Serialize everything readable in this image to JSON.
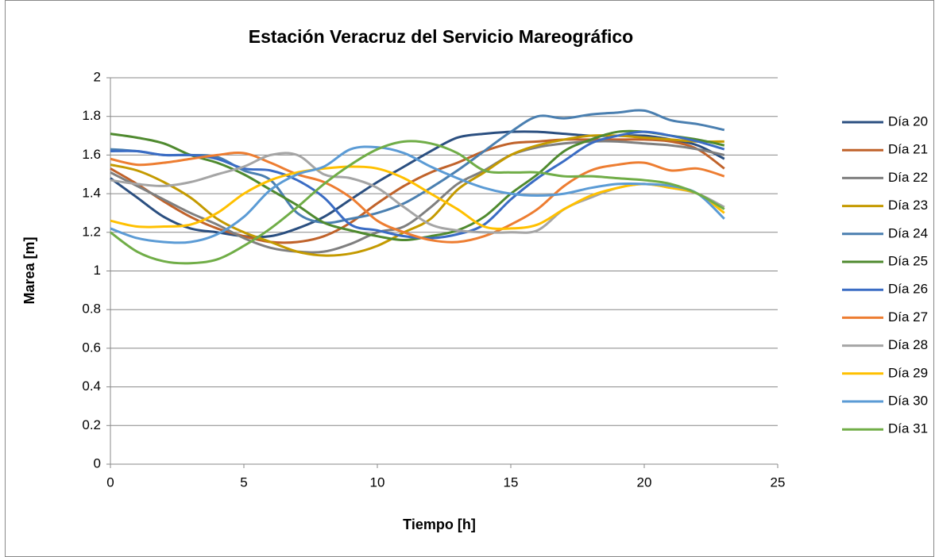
{
  "chart_data": {
    "type": "line",
    "title": "Estación Veracruz del Servicio Mareográfico",
    "xlabel": "Tiempo [h]",
    "ylabel": "Marea [m]",
    "x": [
      0,
      1,
      2,
      3,
      4,
      5,
      6,
      7,
      8,
      9,
      10,
      11,
      12,
      13,
      14,
      15,
      16,
      17,
      18,
      19,
      20,
      21,
      22,
      23
    ],
    "xlim": [
      0,
      25
    ],
    "xticks": [
      0,
      5,
      10,
      15,
      20,
      25
    ],
    "ylim": [
      0,
      2
    ],
    "yticks": [
      0,
      0.2,
      0.4,
      0.6,
      0.8,
      1,
      1.2,
      1.4,
      1.6,
      1.8,
      2
    ],
    "grid": true,
    "legend": "right",
    "smooth": true,
    "series": [
      {
        "name": "Día 20",
        "color": "#2b4f80",
        "values": [
          1.48,
          1.38,
          1.28,
          1.22,
          1.2,
          1.18,
          1.18,
          1.22,
          1.28,
          1.37,
          1.46,
          1.54,
          1.62,
          1.69,
          1.71,
          1.72,
          1.72,
          1.71,
          1.7,
          1.7,
          1.7,
          1.68,
          1.65,
          1.58
        ]
      },
      {
        "name": "Día 21",
        "color": "#c0622a",
        "values": [
          1.53,
          1.45,
          1.36,
          1.28,
          1.22,
          1.18,
          1.15,
          1.15,
          1.18,
          1.25,
          1.35,
          1.44,
          1.51,
          1.56,
          1.62,
          1.66,
          1.67,
          1.68,
          1.68,
          1.68,
          1.68,
          1.67,
          1.63,
          1.53
        ]
      },
      {
        "name": "Día 22",
        "color": "#7f7f7f",
        "values": [
          1.51,
          1.44,
          1.37,
          1.3,
          1.24,
          1.17,
          1.12,
          1.1,
          1.1,
          1.14,
          1.2,
          1.23,
          1.33,
          1.45,
          1.52,
          1.6,
          1.64,
          1.66,
          1.67,
          1.67,
          1.66,
          1.65,
          1.63,
          1.6
        ]
      },
      {
        "name": "Día 23",
        "color": "#c49a00",
        "values": [
          1.55,
          1.52,
          1.46,
          1.38,
          1.27,
          1.2,
          1.15,
          1.1,
          1.08,
          1.09,
          1.13,
          1.2,
          1.27,
          1.42,
          1.51,
          1.6,
          1.65,
          1.68,
          1.7,
          1.7,
          1.69,
          1.68,
          1.67,
          1.67
        ]
      },
      {
        "name": "Día 24",
        "color": "#4a7fb0",
        "values": [
          1.63,
          1.62,
          1.6,
          1.6,
          1.59,
          1.52,
          1.47,
          1.3,
          1.25,
          1.27,
          1.3,
          1.35,
          1.43,
          1.52,
          1.62,
          1.72,
          1.8,
          1.79,
          1.81,
          1.82,
          1.83,
          1.78,
          1.76,
          1.73
        ]
      },
      {
        "name": "Día 25",
        "color": "#4f8a2f",
        "values": [
          1.71,
          1.69,
          1.66,
          1.6,
          1.56,
          1.5,
          1.42,
          1.34,
          1.25,
          1.21,
          1.18,
          1.16,
          1.18,
          1.21,
          1.28,
          1.4,
          1.5,
          1.62,
          1.68,
          1.72,
          1.72,
          1.7,
          1.68,
          1.65
        ]
      },
      {
        "name": "Día 26",
        "color": "#3a6cc4",
        "values": [
          1.62,
          1.62,
          1.6,
          1.6,
          1.58,
          1.53,
          1.52,
          1.47,
          1.38,
          1.24,
          1.21,
          1.18,
          1.17,
          1.19,
          1.24,
          1.37,
          1.48,
          1.57,
          1.66,
          1.7,
          1.72,
          1.7,
          1.67,
          1.63
        ]
      },
      {
        "name": "Día 27",
        "color": "#ed7d31",
        "values": [
          1.58,
          1.55,
          1.56,
          1.58,
          1.6,
          1.61,
          1.56,
          1.5,
          1.46,
          1.38,
          1.26,
          1.2,
          1.16,
          1.15,
          1.18,
          1.24,
          1.32,
          1.44,
          1.52,
          1.55,
          1.56,
          1.52,
          1.53,
          1.49
        ]
      },
      {
        "name": "Día 28",
        "color": "#a5a5a5",
        "values": [
          1.47,
          1.45,
          1.44,
          1.46,
          1.5,
          1.54,
          1.6,
          1.6,
          1.5,
          1.48,
          1.43,
          1.33,
          1.24,
          1.21,
          1.2,
          1.2,
          1.21,
          1.32,
          1.38,
          1.43,
          1.45,
          1.43,
          1.4,
          1.33
        ]
      },
      {
        "name": "Día 29",
        "color": "#ffc000",
        "values": [
          1.26,
          1.23,
          1.23,
          1.24,
          1.3,
          1.4,
          1.47,
          1.51,
          1.53,
          1.54,
          1.53,
          1.48,
          1.4,
          1.32,
          1.23,
          1.22,
          1.24,
          1.32,
          1.39,
          1.43,
          1.45,
          1.43,
          1.4,
          1.3
        ]
      },
      {
        "name": "Día 30",
        "color": "#5b9bd5",
        "values": [
          1.22,
          1.17,
          1.15,
          1.15,
          1.19,
          1.28,
          1.42,
          1.5,
          1.54,
          1.63,
          1.64,
          1.61,
          1.54,
          1.48,
          1.43,
          1.4,
          1.39,
          1.4,
          1.43,
          1.45,
          1.45,
          1.44,
          1.4,
          1.27
        ]
      },
      {
        "name": "Día 31",
        "color": "#70ad47",
        "values": [
          1.2,
          1.1,
          1.05,
          1.04,
          1.06,
          1.13,
          1.22,
          1.33,
          1.45,
          1.55,
          1.63,
          1.67,
          1.66,
          1.61,
          1.52,
          1.51,
          1.51,
          1.49,
          1.49,
          1.48,
          1.47,
          1.45,
          1.4,
          1.32
        ]
      }
    ]
  }
}
